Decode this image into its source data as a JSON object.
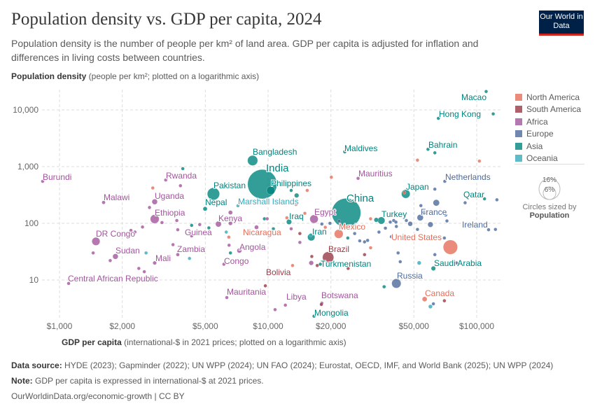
{
  "title": "Population density vs. GDP per capita, 2024",
  "subtitle": "Population density is the number of people per km² of land area. GDP per capita is adjusted for inflation and differences in living costs between countries.",
  "logo": "Our World in Data",
  "y_axis_label": {
    "bold": "Population density",
    "rest": " (people per km²; plotted on a logarithmic axis)"
  },
  "x_axis_label": {
    "bold": "GDP per capita",
    "rest": " (international-$ in 2021 prices; plotted on a logarithmic axis)"
  },
  "legend": [
    {
      "name": "North America",
      "color": "#E56E5A"
    },
    {
      "name": "South America",
      "color": "#9A3A45"
    },
    {
      "name": "Africa",
      "color": "#A2559C"
    },
    {
      "name": "Europe",
      "color": "#4C6A9C"
    },
    {
      "name": "Asia",
      "color": "#00847E"
    },
    {
      "name": "Oceania",
      "color": "#38AABA"
    }
  ],
  "size_legend": {
    "big": "16%",
    "small": "6%",
    "caption": "Circles sized by",
    "caption_bold": "Population"
  },
  "footer": {
    "source_label": "Data source:",
    "source": " HYDE (2023); Gapminder (2022); UN WPP (2024); UN FAO (2024); Eurostat, OECD, IMF, and World Bank (2025); UN WPP (2024)",
    "note_label": "Note:",
    "note": " GDP per capita is expressed in international-$ at 2021 prices.",
    "url": "OurWorldinData.org/economic-growth | CC BY"
  },
  "chart_data": {
    "type": "scatter",
    "xscale": "log",
    "yscale": "log",
    "xlim": [
      750,
      130000
    ],
    "ylim": [
      2,
      30000
    ],
    "grid": true,
    "legend_position": "right",
    "x_ticks": [
      {
        "v": 1000,
        "label": "$1,000"
      },
      {
        "v": 2000,
        "label": "$2,000"
      },
      {
        "v": 5000,
        "label": "$5,000"
      },
      {
        "v": 10000,
        "label": "$10,000"
      },
      {
        "v": 20000,
        "label": "$20,000"
      },
      {
        "v": 50000,
        "label": "$50,000"
      },
      {
        "v": 100000,
        "label": "$100,000"
      }
    ],
    "y_ticks": [
      {
        "v": 10,
        "label": "10"
      },
      {
        "v": 100,
        "label": "100"
      },
      {
        "v": 1000,
        "label": "1,000"
      },
      {
        "v": 10000,
        "label": "10,000"
      }
    ],
    "points": [
      {
        "name": "Burundi",
        "c": "Africa",
        "x": 830,
        "y": 550,
        "pop": 14
      },
      {
        "name": "Central African Republic",
        "c": "Africa",
        "x": 1106,
        "y": 8.7,
        "pop": 5
      },
      {
        "name": "Malawi",
        "c": "Africa",
        "x": 1627,
        "y": 233,
        "pop": 21
      },
      {
        "name": "DR Congo",
        "c": "Africa",
        "x": 1495,
        "y": 48,
        "pop": 109
      },
      {
        "name": "Sudan",
        "c": "Africa",
        "x": 1854,
        "y": 26,
        "pop": 50
      },
      {
        "name": "Mali",
        "c": "Africa",
        "x": 2860,
        "y": 20,
        "pop": 24
      },
      {
        "name": "Ethiopia",
        "c": "Africa",
        "x": 2860,
        "y": 119,
        "pop": 130
      },
      {
        "name": "Uganda",
        "c": "Africa",
        "x": 2860,
        "y": 240,
        "pop": 50
      },
      {
        "name": "Rwanda",
        "c": "Africa",
        "x": 3230,
        "y": 580,
        "pop": 14
      },
      {
        "name": "Zambia",
        "c": "Africa",
        "x": 3690,
        "y": 28,
        "pop": 21
      },
      {
        "name": "Guinea",
        "c": "Africa",
        "x": 3690,
        "y": 77,
        "pop": 14
      },
      {
        "name": "Nepal",
        "c": "Asia",
        "x": 4990,
        "y": 180,
        "pop": 30
      },
      {
        "name": "Pakistan",
        "c": "Asia",
        "x": 5470,
        "y": 330,
        "pop": 251
      },
      {
        "name": "Kenya",
        "c": "Africa",
        "x": 5780,
        "y": 97,
        "pop": 56
      },
      {
        "name": "Congo",
        "c": "Africa",
        "x": 6140,
        "y": 19,
        "pop": 6
      },
      {
        "name": "Angola",
        "c": "Africa",
        "x": 7280,
        "y": 33,
        "pop": 37
      },
      {
        "name": "Nicaragua",
        "c": "North America",
        "x": 6480,
        "y": 57,
        "pop": 7
      },
      {
        "name": "Mauritania",
        "c": "Africa",
        "x": 6340,
        "y": 4.9,
        "pop": 5
      },
      {
        "name": "Marshall Islands",
        "c": "Oceania",
        "x": 7170,
        "y": 204,
        "pop": 0.04
      },
      {
        "name": "Bangladesh",
        "c": "Asia",
        "x": 8430,
        "y": 1280,
        "pop": 173
      },
      {
        "name": "India",
        "c": "Asia",
        "x": 9380,
        "y": 490,
        "pop": 1450
      },
      {
        "name": "Philippines",
        "c": "Asia",
        "x": 10300,
        "y": 380,
        "pop": 116
      },
      {
        "name": "Bolivia",
        "c": "South America",
        "x": 9700,
        "y": 7.9,
        "pop": 12
      },
      {
        "name": "Libya",
        "c": "Africa",
        "x": 12100,
        "y": 3.6,
        "pop": 7
      },
      {
        "name": "Iraq",
        "c": "Asia",
        "x": 12600,
        "y": 106,
        "pop": 46
      },
      {
        "name": "Iran",
        "c": "Asia",
        "x": 16100,
        "y": 57,
        "pop": 91
      },
      {
        "name": "Egypt",
        "c": "Africa",
        "x": 16600,
        "y": 119,
        "pop": 116
      },
      {
        "name": "Mexico",
        "c": "North America",
        "x": 21800,
        "y": 65,
        "pop": 130
      },
      {
        "name": "Brazil",
        "c": "South America",
        "x": 19400,
        "y": 25,
        "pop": 212
      },
      {
        "name": "Turkmenistan",
        "c": "Asia",
        "x": 17800,
        "y": 19,
        "pop": 7
      },
      {
        "name": "Botswana",
        "c": "Africa",
        "x": 18100,
        "y": 3.9,
        "pop": 2.5
      },
      {
        "name": "Mongolia",
        "c": "Asia",
        "x": 16600,
        "y": 2.3,
        "pop": 3.5
      },
      {
        "name": "Maldives",
        "c": "Asia",
        "x": 23300,
        "y": 1820,
        "pop": 0.5
      },
      {
        "name": "Mauritius",
        "c": "Africa",
        "x": 27000,
        "y": 620,
        "pop": 1.3
      },
      {
        "name": "China",
        "c": "Asia",
        "x": 23700,
        "y": 153,
        "pop": 1420
      },
      {
        "name": "Turkey",
        "c": "Asia",
        "x": 34900,
        "y": 112,
        "pop": 87
      },
      {
        "name": "Russia",
        "c": "Europe",
        "x": 41200,
        "y": 8.7,
        "pop": 145
      },
      {
        "name": "Japan",
        "c": "Asia",
        "x": 45700,
        "y": 330,
        "pop": 124
      },
      {
        "name": "Bahrain",
        "c": "Asia",
        "x": 58400,
        "y": 2020,
        "pop": 1.6
      },
      {
        "name": "Hong Kong",
        "c": "Asia",
        "x": 65500,
        "y": 7100,
        "pop": 7.4
      },
      {
        "name": "Macao",
        "c": "Asia",
        "x": 111000,
        "y": 21100,
        "pop": 0.7
      },
      {
        "name": "Netherlands",
        "c": "Europe",
        "x": 70300,
        "y": 550,
        "pop": 18
      },
      {
        "name": "France",
        "c": "Europe",
        "x": 53600,
        "y": 126,
        "pop": 66
      },
      {
        "name": "Ireland",
        "c": "Europe",
        "x": 114000,
        "y": 77,
        "pop": 5.3
      },
      {
        "name": "Qatar",
        "c": "Asia",
        "x": 109000,
        "y": 270,
        "pop": 3
      },
      {
        "name": "Saudi Arabia",
        "c": "Asia",
        "x": 62000,
        "y": 16,
        "pop": 34
      },
      {
        "name": "United States",
        "c": "North America",
        "x": 74800,
        "y": 38,
        "pop": 345
      },
      {
        "name": "Canada",
        "c": "North America",
        "x": 56300,
        "y": 4.6,
        "pop": 40
      },
      {
        "c": "Asia",
        "x": 3900,
        "y": 920,
        "pop": 1
      },
      {
        "c": "North America",
        "x": 2800,
        "y": 420,
        "pop": 11
      },
      {
        "c": "Africa",
        "x": 3800,
        "y": 460,
        "pop": 13
      },
      {
        "c": "Africa",
        "x": 2700,
        "y": 190,
        "pop": 3
      },
      {
        "c": "Africa",
        "x": 3100,
        "y": 103,
        "pop": 7
      },
      {
        "c": "Africa",
        "x": 3650,
        "y": 112,
        "pop": 4
      },
      {
        "c": "Africa",
        "x": 2500,
        "y": 86,
        "pop": 9
      },
      {
        "c": "Africa",
        "x": 2300,
        "y": 70,
        "pop": 9
      },
      {
        "c": "Africa",
        "x": 2200,
        "y": 75,
        "pop": 8
      },
      {
        "c": "Africa",
        "x": 1450,
        "y": 30,
        "pop": 6
      },
      {
        "c": "Africa",
        "x": 1750,
        "y": 22,
        "pop": 8
      },
      {
        "c": "Oceania",
        "x": 2600,
        "y": 30,
        "pop": 2
      },
      {
        "c": "Africa",
        "x": 2400,
        "y": 16,
        "pop": 6
      },
      {
        "c": "Africa",
        "x": 2550,
        "y": 14,
        "pop": 5
      },
      {
        "c": "Oceania",
        "x": 4200,
        "y": 24,
        "pop": 10
      },
      {
        "c": "Africa",
        "x": 3500,
        "y": 42,
        "pop": 4
      },
      {
        "c": "Africa",
        "x": 4300,
        "y": 60,
        "pop": 5
      },
      {
        "c": "Asia",
        "x": 4300,
        "y": 92,
        "pop": 4
      },
      {
        "c": "Africa",
        "x": 4700,
        "y": 95,
        "pop": 5
      },
      {
        "c": "Asia",
        "x": 5200,
        "y": 83,
        "pop": 18
      },
      {
        "c": "Oceania",
        "x": 6300,
        "y": 70,
        "pop": 1
      },
      {
        "c": "Africa",
        "x": 6600,
        "y": 100,
        "pop": 28
      },
      {
        "c": "Africa",
        "x": 6600,
        "y": 155,
        "pop": 30
      },
      {
        "c": "Africa",
        "x": 6500,
        "y": 41,
        "pop": 4
      },
      {
        "c": "Asia",
        "x": 6600,
        "y": 30,
        "pop": 2
      },
      {
        "c": "Africa",
        "x": 8800,
        "y": 85,
        "pop": 29
      },
      {
        "c": "Asia",
        "x": 10600,
        "y": 80,
        "pop": 10
      },
      {
        "c": "Asia",
        "x": 9600,
        "y": 120,
        "pop": 2
      },
      {
        "c": "Africa",
        "x": 9900,
        "y": 120,
        "pop": 2
      },
      {
        "c": "Africa",
        "x": 10800,
        "y": 3,
        "pop": 3
      },
      {
        "c": "Asia",
        "x": 13700,
        "y": 310,
        "pop": 35
      },
      {
        "c": "Asia",
        "x": 12900,
        "y": 380,
        "pop": 5
      },
      {
        "c": "North America",
        "x": 15400,
        "y": 380,
        "pop": 3
      },
      {
        "c": "North America",
        "x": 13600,
        "y": 215,
        "pop": 2
      },
      {
        "c": "North America",
        "x": 15000,
        "y": 150,
        "pop": 1
      },
      {
        "c": "North America",
        "x": 12300,
        "y": 125,
        "pop": 11
      },
      {
        "c": "Africa",
        "x": 12900,
        "y": 80,
        "pop": 1
      },
      {
        "c": "South America",
        "x": 14200,
        "y": 66,
        "pop": 2
      },
      {
        "c": "Oceania",
        "x": 16000,
        "y": 62,
        "pop": 1
      },
      {
        "c": "Africa",
        "x": 14200,
        "y": 46,
        "pop": 2
      },
      {
        "c": "South America",
        "x": 16200,
        "y": 26,
        "pop": 9
      },
      {
        "c": "North America",
        "x": 13100,
        "y": 18,
        "pop": 6
      },
      {
        "c": "South America",
        "x": 17200,
        "y": 18,
        "pop": 8
      },
      {
        "c": "Africa",
        "x": 16100,
        "y": 20,
        "pop": 35
      },
      {
        "c": "South America",
        "x": 18000,
        "y": 3.7,
        "pop": 0.5
      },
      {
        "c": "North America",
        "x": 20100,
        "y": 650,
        "pop": 0.1
      },
      {
        "c": "Europe",
        "x": 19800,
        "y": 100,
        "pop": 6
      },
      {
        "c": "Europe",
        "x": 18100,
        "y": 97,
        "pop": 3
      },
      {
        "c": "North America",
        "x": 18800,
        "y": 85,
        "pop": 1
      },
      {
        "c": "Europe",
        "x": 21900,
        "y": 110,
        "pop": 3
      },
      {
        "c": "Asia",
        "x": 24100,
        "y": 55,
        "pop": 8
      },
      {
        "c": "South America",
        "x": 24200,
        "y": 16,
        "pop": 19
      },
      {
        "c": "Europe",
        "x": 26000,
        "y": 66,
        "pop": 2
      },
      {
        "c": "Europe",
        "x": 27500,
        "y": 49,
        "pop": 2
      },
      {
        "c": "Europe",
        "x": 29000,
        "y": 47,
        "pop": 2
      },
      {
        "c": "South America",
        "x": 29000,
        "y": 28,
        "pop": 4
      },
      {
        "c": "North America",
        "x": 31000,
        "y": 37,
        "pop": 0.4
      },
      {
        "c": "North America",
        "x": 31000,
        "y": 120,
        "pop": 0.3
      },
      {
        "c": "Europe",
        "x": 30000,
        "y": 50,
        "pop": 9
      },
      {
        "c": "Europe",
        "x": 34000,
        "y": 70,
        "pop": 4
      },
      {
        "c": "Europe",
        "x": 36500,
        "y": 82,
        "pop": 5
      },
      {
        "c": "Europe",
        "x": 38500,
        "y": 105,
        "pop": 10
      },
      {
        "c": "Europe",
        "x": 40000,
        "y": 112,
        "pop": 10
      },
      {
        "c": "Europe",
        "x": 41000,
        "y": 105,
        "pop": 5
      },
      {
        "c": "Europe",
        "x": 41200,
        "y": 88,
        "pop": 6
      },
      {
        "c": "Europe",
        "x": 39000,
        "y": 58,
        "pop": 4
      },
      {
        "c": "Europe",
        "x": 42000,
        "y": 30,
        "pop": 2
      },
      {
        "c": "Europe",
        "x": 46000,
        "y": 112,
        "pop": 10
      },
      {
        "c": "Europe",
        "x": 48000,
        "y": 98,
        "pop": 38
      },
      {
        "c": "Europe",
        "x": 52000,
        "y": 78,
        "pop": 19
      },
      {
        "c": "Europe",
        "x": 54000,
        "y": 205,
        "pop": 10
      },
      {
        "c": "Europe",
        "x": 56000,
        "y": 155,
        "pop": 28
      },
      {
        "c": "Europe",
        "x": 60000,
        "y": 95,
        "pop": 48
      },
      {
        "c": "Europe",
        "x": 64000,
        "y": 230,
        "pop": 68
      },
      {
        "c": "Europe",
        "x": 63000,
        "y": 400,
        "pop": 10
      },
      {
        "c": "Europe",
        "x": 71000,
        "y": 140,
        "pop": 9
      },
      {
        "c": "Europe",
        "x": 72000,
        "y": 110,
        "pop": 7
      },
      {
        "c": "Europe",
        "x": 70000,
        "y": 55,
        "pop": 10
      },
      {
        "c": "Europe",
        "x": 63000,
        "y": 28,
        "pop": 5
      },
      {
        "c": "Europe",
        "x": 80000,
        "y": 20,
        "pop": 6
      },
      {
        "c": "Europe",
        "x": 88000,
        "y": 230,
        "pop": 8
      },
      {
        "c": "Europe",
        "x": 125000,
        "y": 260,
        "pop": 0.7
      },
      {
        "c": "Europe",
        "x": 123000,
        "y": 78,
        "pop": 0.7
      },
      {
        "c": "Asia",
        "x": 120000,
        "y": 8500,
        "pop": 6
      },
      {
        "c": "Asia",
        "x": 63000,
        "y": 1750,
        "pop": 0.5
      },
      {
        "c": "North America",
        "x": 103000,
        "y": 1250,
        "pop": 0.06
      },
      {
        "c": "North America",
        "x": 52000,
        "y": 1300,
        "pop": 0.3
      },
      {
        "c": "North America",
        "x": 45000,
        "y": 350,
        "pop": 0.3
      },
      {
        "c": "Asia",
        "x": 87000,
        "y": 90,
        "pop": 1
      },
      {
        "c": "Oceania",
        "x": 53000,
        "y": 20,
        "pop": 27
      },
      {
        "c": "Oceania",
        "x": 60000,
        "y": 3.4,
        "pop": 27
      },
      {
        "c": "Europe",
        "x": 62000,
        "y": 3.8,
        "pop": 5.5
      },
      {
        "c": "South America",
        "x": 70000,
        "y": 4.3,
        "pop": 0.8
      },
      {
        "c": "Asia",
        "x": 36000,
        "y": 7.6,
        "pop": 20
      },
      {
        "c": "Asia",
        "x": 27000,
        "y": 18,
        "pop": 2
      },
      {
        "c": "Europe",
        "x": 43000,
        "y": 21,
        "pop": 5
      },
      {
        "c": "Asia",
        "x": 33000,
        "y": 115,
        "pop": 34
      }
    ]
  }
}
